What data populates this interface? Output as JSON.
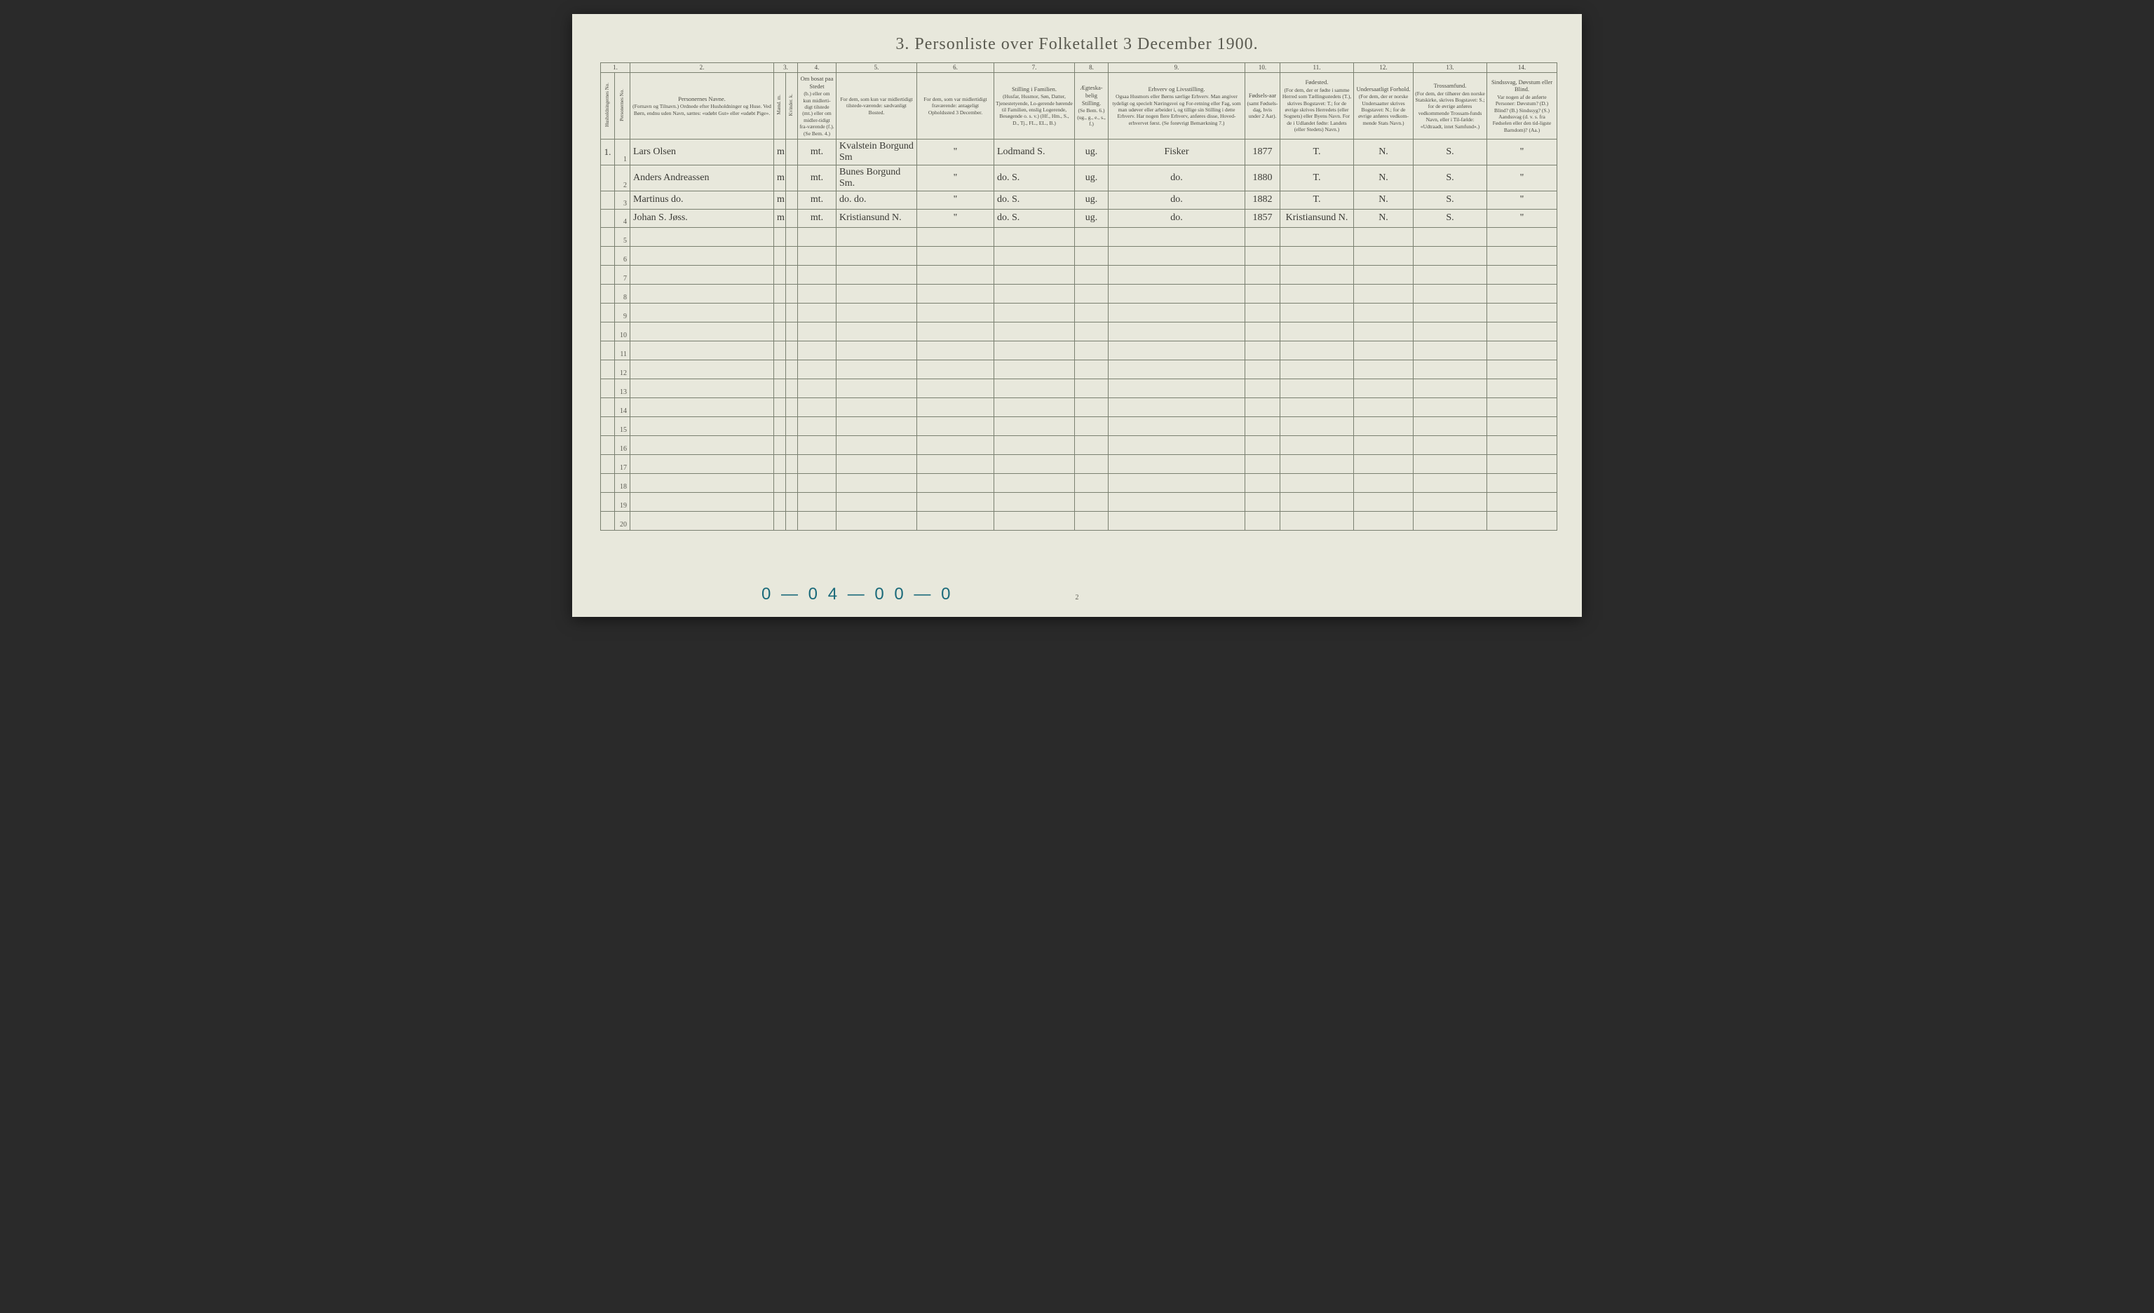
{
  "title": "3. Personliste over Folketallet 3 December 1900.",
  "page_number": "2",
  "footer_mark": "0 — 0 4 — 0 0 — 0",
  "col_numbers": [
    "1.",
    "2.",
    "3.",
    "4.",
    "5.",
    "6.",
    "7.",
    "8.",
    "9.",
    "10.",
    "11.",
    "12.",
    "13.",
    "14."
  ],
  "headers": {
    "hh": "Husholdningernes No.",
    "pn": "Personernes No.",
    "name": {
      "main": "Personernes Navne.",
      "sub": "(Fornavn og Tilnavn.) Ordnede efter Husholdninger og Huse. Ved Børn, endnu uden Navn, sættes: «udøbt Gut» eller «udøbt Pige»."
    },
    "kjon": {
      "main": "Kjøn.",
      "m": "Mænd. m.",
      "k": "Kvinder. k."
    },
    "res": {
      "main": "Om bosat paa Stedet",
      "sub": "(b.) eller om kun midlerti-digt tilstede (mt.) eller om midler-tidigt fra-værende (f.). (Se Bem. 4.)"
    },
    "c5": {
      "main": "",
      "sub": "For dem, som kun var midlertidigt tilstede-værende: sædvanligt Bosted."
    },
    "c6": {
      "main": "",
      "sub": "For dem, som var midlertidigt fraværende: antageligt Opholdssted 3 December."
    },
    "c7": {
      "main": "Stilling i Familien.",
      "sub": "(Husfar, Husmor, Søn, Datter, Tjenestetyende, Lo-gerende hørende til Familien, enslig Logerende, Besøgende o. s. v.) (Hf., Hm., S., D., Tj., FL., EL., B.)"
    },
    "c8": {
      "main": "Ægteska-belig Stilling.",
      "sub": "(Se Bem. 6.) (ug., g., e., s., f.)"
    },
    "c9": {
      "main": "Erhverv og Livsstilling.",
      "sub": "Ogsaa Husmors eller Børns særlige Erhverv. Man angiver tydeligt og specielt Næringsvei og For-retning eller Fag, som man udøver eller arbeider i, og tillige sin Stilling i dette Erhverv. Har nogen flere Erhverv, anføres disse, Hoved-erhvervet først. (Se forøvrigt Bemærkning 7.)"
    },
    "c10": {
      "main": "Fødsels-aar",
      "sub": "(samt Fødsels-dag, hvis under 2 Aar)."
    },
    "c11": {
      "main": "Fødested.",
      "sub": "(For dem, der er fødte i samme Herred som Tællingsstedets (T.), skrives Bogstavet: T.; for de øvrige skrives Herredets (eller Sognets) eller Byens Navn. For de i Udlandet fødte: Landets (eller Stedets) Navn.)"
    },
    "c12": {
      "main": "Undersaatligt Forhold.",
      "sub": "(For dem, der er norske Undersaatter skrives Bogstavet: N.; for de øvrige anføres vedkom-mende Stats Navn.)"
    },
    "c13": {
      "main": "Trossamfund.",
      "sub": "(For dem, der tilhører den norske Statskirke, skrives Bogstavet: S.; for de øvrige anføres vedkommende Trossam-funds Navn, eller i Til-fælde: «Udtraadt, intet Samfund».)"
    },
    "c14": {
      "main": "Sindssvag, Døvstum eller Blind.",
      "sub": "Var nogen af de anførte Personer: Døvstum? (D.) Blind? (B.) Sindssyg? (S.) Aandssvag (d. v. s. fra Fødselen eller den tid-ligste Barndom)? (Aa.)"
    }
  },
  "rows": [
    {
      "hh": "1.",
      "pn": "1",
      "name": "Lars Olsen",
      "m": "m",
      "k": "",
      "res": "mt.",
      "c5": "Kvalstein Borgund Sm",
      "c6": "\"",
      "c7": "Lodmand S.",
      "c8": "ug.",
      "c9": "Fisker",
      "c10": "1877",
      "c11": "T.",
      "c12": "N.",
      "c13": "S.",
      "c14": "\""
    },
    {
      "hh": "",
      "pn": "2",
      "name": "Anders Andreassen",
      "m": "m",
      "k": "",
      "res": "mt.",
      "c5": "Bunes Borgund Sm.",
      "c6": "\"",
      "c7": "do.  S.",
      "c8": "ug.",
      "c9": "do.",
      "c10": "1880",
      "c11": "T.",
      "c12": "N.",
      "c13": "S.",
      "c14": "\""
    },
    {
      "hh": "",
      "pn": "3",
      "name": "Martinus   do.",
      "m": "m",
      "k": "",
      "res": "mt.",
      "c5": "do. do.",
      "c6": "\"",
      "c7": "do.  S.",
      "c8": "ug.",
      "c9": "do.",
      "c10": "1882",
      "c11": "T.",
      "c12": "N.",
      "c13": "S.",
      "c14": "\""
    },
    {
      "hh": "",
      "pn": "4",
      "name": "Johan S. Jøss.",
      "m": "m",
      "k": "",
      "res": "mt.",
      "c5": "Kristiansund N.",
      "c6": "\"",
      "c7": "do.  S.",
      "c8": "ug.",
      "c9": "do.",
      "c10": "1857",
      "c11": "Kristiansund N.",
      "c12": "N.",
      "c13": "S.",
      "c14": "\""
    }
  ],
  "empty_rows": [
    "5",
    "6",
    "7",
    "8",
    "9",
    "10",
    "11",
    "12",
    "13",
    "14",
    "15",
    "16",
    "17",
    "18",
    "19",
    "20"
  ],
  "colors": {
    "page_bg": "#e8e8dc",
    "border": "#7a8070",
    "text": "#4a4a42",
    "handwriting": "#3a3a35",
    "stamp": "#1a6a7a"
  }
}
